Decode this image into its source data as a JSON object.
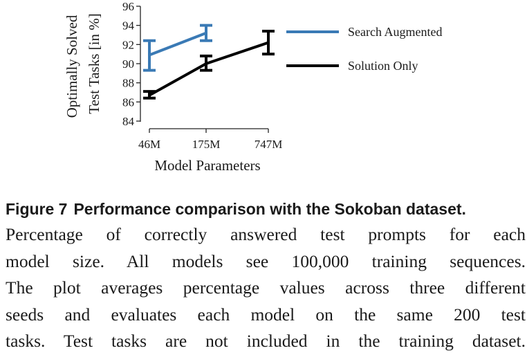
{
  "chart_data": {
    "type": "line",
    "x_categories": [
      "46M",
      "175M",
      "747M"
    ],
    "xlabel": "Model Parameters",
    "ylabel_lines": [
      "Optimally Solved",
      "Test Tasks [in %]"
    ],
    "ylim": [
      84,
      96
    ],
    "yticks": [
      84,
      86,
      88,
      90,
      92,
      94,
      96
    ],
    "grid": false,
    "legend_position": "right",
    "series": [
      {
        "name": "Search Augmented",
        "color": "#3a7ab5",
        "points": [
          {
            "x": "46M",
            "y": 90.9,
            "err_low": 89.3,
            "err_high": 92.4
          },
          {
            "x": "175M",
            "y": 93.2,
            "err_low": 92.4,
            "err_high": 94.0
          }
        ]
      },
      {
        "name": "Solution Only",
        "color": "#000000",
        "points": [
          {
            "x": "46M",
            "y": 86.7,
            "err_low": 86.4,
            "err_high": 87.1
          },
          {
            "x": "175M",
            "y": 90.0,
            "err_low": 89.3,
            "err_high": 90.8
          },
          {
            "x": "747M",
            "y": 92.2,
            "err_low": 91.0,
            "err_high": 93.4
          }
        ]
      }
    ]
  },
  "caption": {
    "figure_label": "Figure 7",
    "figure_title": "Performance comparison with the Sokoban dataset.",
    "lines": [
      "Percentage of correctly answered test prompts for each",
      "model size. All models see 100,000 training sequences.",
      "The plot averages percentage values across three different",
      "seeds and evaluates each model on the same 200 test",
      "tasks. Test tasks are not included in the training dataset."
    ]
  }
}
